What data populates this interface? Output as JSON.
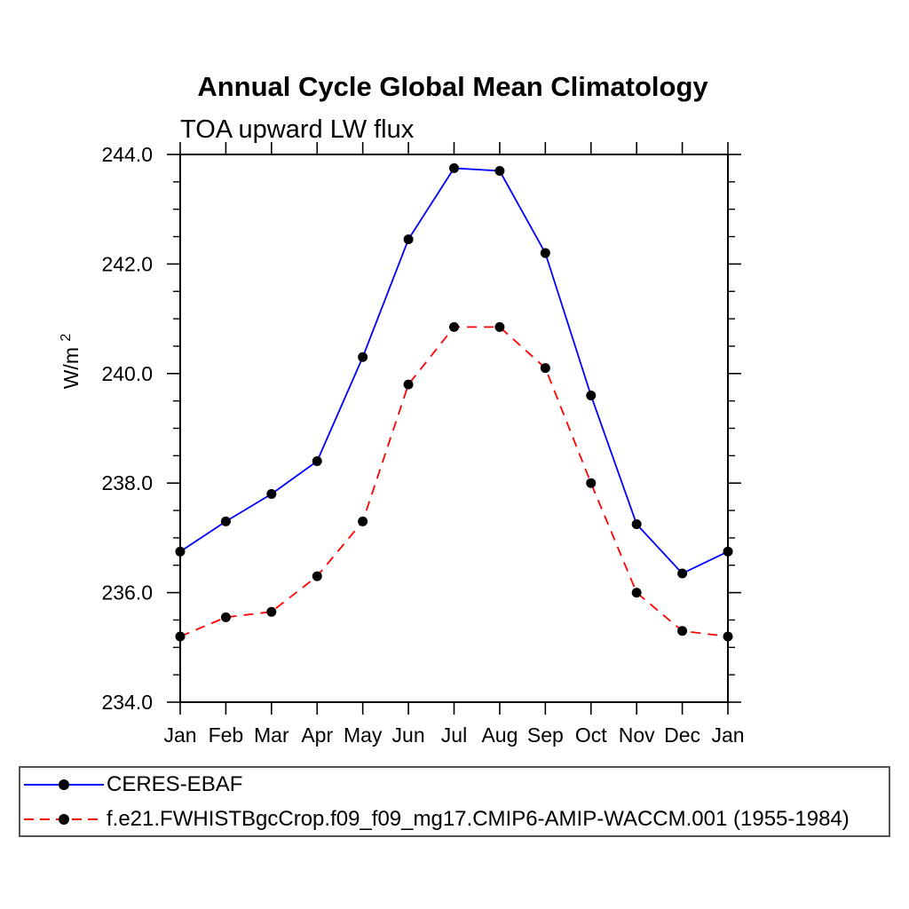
{
  "chart_data": {
    "type": "line",
    "title": "Annual Cycle Global Mean Climatology",
    "subtitle": "TOA upward LW flux",
    "ylabel_base": "W/m",
    "ylabel_sup": "2",
    "categories": [
      "Jan",
      "Feb",
      "Mar",
      "Apr",
      "May",
      "Jun",
      "Jul",
      "Aug",
      "Sep",
      "Oct",
      "Nov",
      "Dec",
      "Jan"
    ],
    "series": [
      {
        "name": "CERES-EBAF",
        "color": "#0000ff",
        "line_style": "solid",
        "marker": "black-filled-circle",
        "values": [
          236.75,
          237.3,
          237.8,
          238.4,
          240.3,
          242.45,
          243.75,
          243.7,
          242.2,
          239.6,
          237.25,
          236.35,
          236.75
        ]
      },
      {
        "name": "f.e21.FWHISTBgcCrop.f09_f09_mg17.CMIP6-AMIP-WACCM.001 (1955-1984)",
        "color": "#ff0000",
        "line_style": "dashed",
        "marker": "black-filled-circle",
        "values": [
          235.2,
          235.55,
          235.65,
          236.3,
          237.3,
          239.8,
          240.85,
          240.85,
          240.1,
          238.0,
          236.0,
          235.3,
          235.2
        ]
      }
    ],
    "ylim": [
      234.0,
      244.0
    ],
    "y_major_tick_values": [
      234,
      236,
      238,
      240,
      242,
      244
    ],
    "y_major_tick_labels": [
      "234.0",
      "236.0",
      "238.0",
      "240.0",
      "242.0",
      "244.0"
    ],
    "y_minor_step": 0.5,
    "xlabel": "",
    "grid": false,
    "legend_position": "bottom-box",
    "axis_color": "#000000",
    "marker_color": "#000000"
  }
}
